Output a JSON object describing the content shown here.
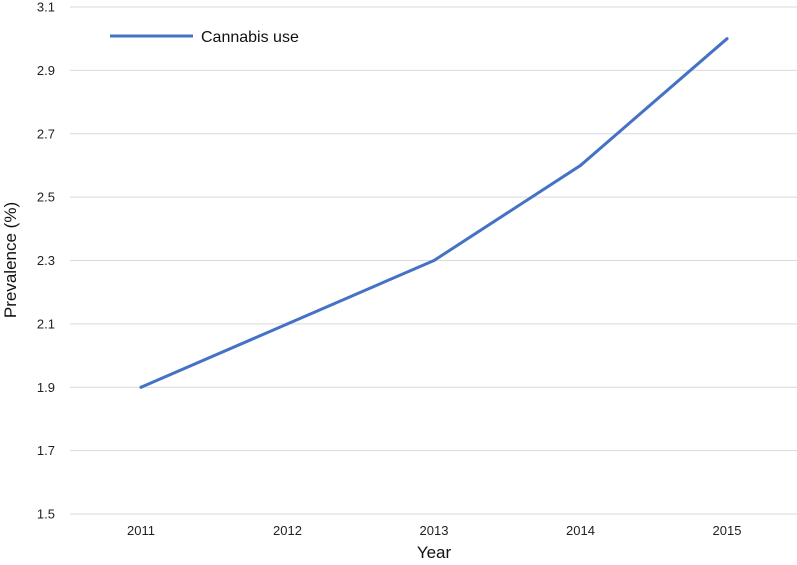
{
  "chart_data": {
    "type": "line",
    "x": [
      "2011",
      "2012",
      "2013",
      "2014",
      "2015"
    ],
    "series": [
      {
        "name": "Cannabis use",
        "values": [
          1.9,
          2.1,
          2.3,
          2.6,
          3.0
        ],
        "color": "#4472C4"
      }
    ],
    "xlabel": "Year",
    "ylabel": "Prevalence (%)",
    "ylim": [
      1.5,
      3.1
    ],
    "yticks": [
      "1.5",
      "1.7",
      "1.9",
      "2.1",
      "2.3",
      "2.5",
      "2.7",
      "2.9",
      "3.1"
    ],
    "grid": true,
    "legend": "top-left"
  }
}
